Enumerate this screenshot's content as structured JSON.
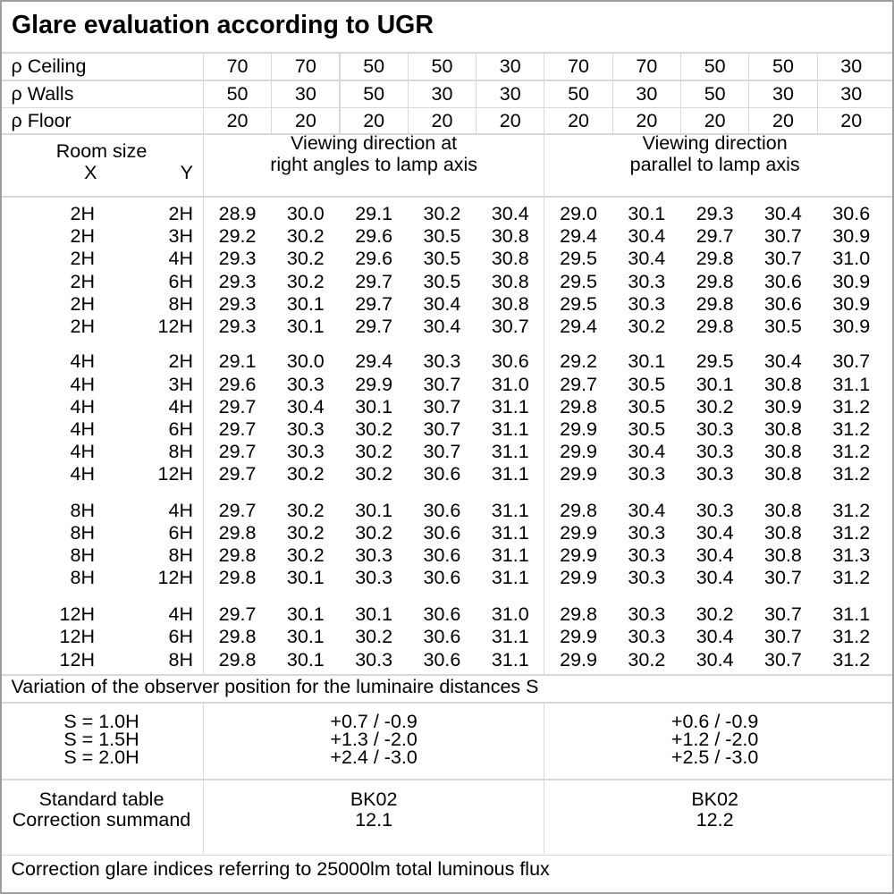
{
  "title": "Glare evaluation according to UGR",
  "reflectance_rows": [
    {
      "label": "ρ Ceiling",
      "values": [
        "70",
        "70",
        "50",
        "50",
        "30",
        "70",
        "70",
        "50",
        "50",
        "30"
      ]
    },
    {
      "label": "ρ Walls",
      "values": [
        "50",
        "30",
        "50",
        "30",
        "30",
        "50",
        "30",
        "50",
        "30",
        "30"
      ]
    },
    {
      "label": "ρ Floor",
      "values": [
        "20",
        "20",
        "20",
        "20",
        "20",
        "20",
        "20",
        "20",
        "20",
        "20"
      ]
    }
  ],
  "header": {
    "room_size_label": "Room size",
    "x_label": "X",
    "y_label": "Y",
    "group1_line1": "Viewing direction at",
    "group1_line2": "right angles to lamp axis",
    "group2_line1": "Viewing direction",
    "group2_line2": "parallel to lamp axis"
  },
  "ugr_groups": [
    {
      "rows": [
        {
          "x": "2H",
          "y": "2H",
          "values": [
            "28.9",
            "30.0",
            "29.1",
            "30.2",
            "30.4",
            "29.0",
            "30.1",
            "29.3",
            "30.4",
            "30.6"
          ]
        },
        {
          "x": "2H",
          "y": "3H",
          "values": [
            "29.2",
            "30.2",
            "29.6",
            "30.5",
            "30.8",
            "29.4",
            "30.4",
            "29.7",
            "30.7",
            "30.9"
          ]
        },
        {
          "x": "2H",
          "y": "4H",
          "values": [
            "29.3",
            "30.2",
            "29.6",
            "30.5",
            "30.8",
            "29.5",
            "30.4",
            "29.8",
            "30.7",
            "31.0"
          ]
        },
        {
          "x": "2H",
          "y": "6H",
          "values": [
            "29.3",
            "30.2",
            "29.7",
            "30.5",
            "30.8",
            "29.5",
            "30.3",
            "29.8",
            "30.6",
            "30.9"
          ]
        },
        {
          "x": "2H",
          "y": "8H",
          "values": [
            "29.3",
            "30.1",
            "29.7",
            "30.4",
            "30.8",
            "29.5",
            "30.3",
            "29.8",
            "30.6",
            "30.9"
          ]
        },
        {
          "x": "2H",
          "y": "12H",
          "values": [
            "29.3",
            "30.1",
            "29.7",
            "30.4",
            "30.7",
            "29.4",
            "30.2",
            "29.8",
            "30.5",
            "30.9"
          ]
        }
      ]
    },
    {
      "rows": [
        {
          "x": "4H",
          "y": "2H",
          "values": [
            "29.1",
            "30.0",
            "29.4",
            "30.3",
            "30.6",
            "29.2",
            "30.1",
            "29.5",
            "30.4",
            "30.7"
          ]
        },
        {
          "x": "4H",
          "y": "3H",
          "values": [
            "29.6",
            "30.3",
            "29.9",
            "30.7",
            "31.0",
            "29.7",
            "30.5",
            "30.1",
            "30.8",
            "31.1"
          ]
        },
        {
          "x": "4H",
          "y": "4H",
          "values": [
            "29.7",
            "30.4",
            "30.1",
            "30.7",
            "31.1",
            "29.8",
            "30.5",
            "30.2",
            "30.9",
            "31.2"
          ]
        },
        {
          "x": "4H",
          "y": "6H",
          "values": [
            "29.7",
            "30.3",
            "30.2",
            "30.7",
            "31.1",
            "29.9",
            "30.5",
            "30.3",
            "30.8",
            "31.2"
          ]
        },
        {
          "x": "4H",
          "y": "8H",
          "values": [
            "29.7",
            "30.3",
            "30.2",
            "30.7",
            "31.1",
            "29.9",
            "30.4",
            "30.3",
            "30.8",
            "31.2"
          ]
        },
        {
          "x": "4H",
          "y": "12H",
          "values": [
            "29.7",
            "30.2",
            "30.2",
            "30.6",
            "31.1",
            "29.9",
            "30.3",
            "30.3",
            "30.8",
            "31.2"
          ]
        }
      ]
    },
    {
      "rows": [
        {
          "x": "8H",
          "y": "4H",
          "values": [
            "29.7",
            "30.2",
            "30.1",
            "30.6",
            "31.1",
            "29.8",
            "30.4",
            "30.3",
            "30.8",
            "31.2"
          ]
        },
        {
          "x": "8H",
          "y": "6H",
          "values": [
            "29.8",
            "30.2",
            "30.2",
            "30.6",
            "31.1",
            "29.9",
            "30.3",
            "30.4",
            "30.8",
            "31.2"
          ]
        },
        {
          "x": "8H",
          "y": "8H",
          "values": [
            "29.8",
            "30.2",
            "30.3",
            "30.6",
            "31.1",
            "29.9",
            "30.3",
            "30.4",
            "30.8",
            "31.3"
          ]
        },
        {
          "x": "8H",
          "y": "12H",
          "values": [
            "29.8",
            "30.1",
            "30.3",
            "30.6",
            "31.1",
            "29.9",
            "30.3",
            "30.4",
            "30.7",
            "31.2"
          ]
        }
      ]
    },
    {
      "rows": [
        {
          "x": "12H",
          "y": "4H",
          "values": [
            "29.7",
            "30.1",
            "30.1",
            "30.6",
            "31.0",
            "29.8",
            "30.3",
            "30.2",
            "30.7",
            "31.1"
          ]
        },
        {
          "x": "12H",
          "y": "6H",
          "values": [
            "29.8",
            "30.1",
            "30.2",
            "30.6",
            "31.1",
            "29.9",
            "30.3",
            "30.4",
            "30.7",
            "31.2"
          ]
        },
        {
          "x": "12H",
          "y": "8H",
          "values": [
            "29.8",
            "30.1",
            "30.3",
            "30.6",
            "31.1",
            "29.9",
            "30.2",
            "30.4",
            "30.7",
            "31.2"
          ]
        }
      ]
    }
  ],
  "variation_note": "Variation of the observer position for the luminaire distances S",
  "spacing_rows": [
    {
      "label": "S = 1.0H",
      "right_angles": "+0.7 / -0.9",
      "parallel": "+0.6 / -0.9"
    },
    {
      "label": "S = 1.5H",
      "right_angles": "+1.3 / -2.0",
      "parallel": "+1.2 / -2.0"
    },
    {
      "label": "S = 2.0H",
      "right_angles": "+2.4 / -3.0",
      "parallel": "+2.5 / -3.0"
    }
  ],
  "standard_rows": [
    {
      "label": "Standard table",
      "right_angles": "BK02",
      "parallel": "BK02"
    },
    {
      "label": "Correction summand",
      "right_angles": "12.1",
      "parallel": "12.2"
    }
  ],
  "footer_note": "Correction glare indices referring to 25000lm total luminous flux",
  "colors": {
    "grid_line": "#d9d9d9",
    "outer_border": "#9c9c9c",
    "text": "#000000",
    "background": "#ffffff"
  }
}
